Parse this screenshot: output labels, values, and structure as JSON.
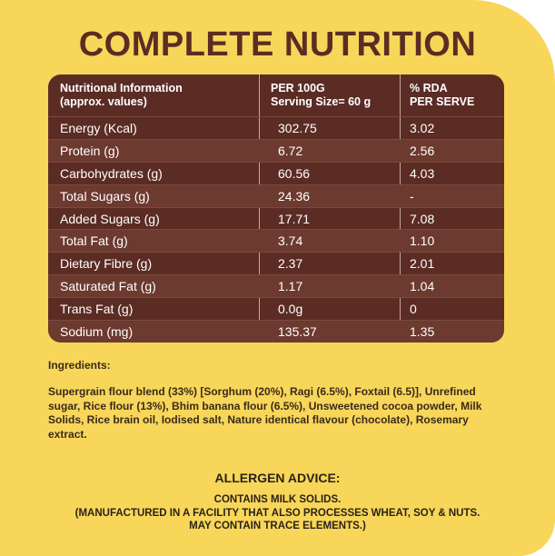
{
  "title": "COMPLETE NUTRITION",
  "table": {
    "headers": {
      "col1_line1": "Nutritional Information",
      "col1_line2": "(approx. values)",
      "col2_line1": "PER 100G",
      "col2_line2": "Serving Size= 60 g",
      "col3_line1": "% RDA",
      "col3_line2": "PER SERVE"
    },
    "rows": [
      {
        "name": "Energy (Kcal)",
        "per100": "302.75",
        "rda": "3.02"
      },
      {
        "name": "Protein (g)",
        "per100": "6.72",
        "rda": "2.56"
      },
      {
        "name": "Carbohydrates (g)",
        "per100": "60.56",
        "rda": "4.03"
      },
      {
        "name": "Total Sugars (g)",
        "per100": "24.36",
        "rda": "-"
      },
      {
        "name": "Added Sugars (g)",
        "per100": "17.71",
        "rda": "7.08"
      },
      {
        "name": "Total Fat (g)",
        "per100": "3.74",
        "rda": "1.10"
      },
      {
        "name": "Dietary Fibre (g)",
        "per100": "2.37",
        "rda": "2.01"
      },
      {
        "name": "Saturated Fat (g)",
        "per100": "1.17",
        "rda": "1.04"
      },
      {
        "name": "Trans Fat (g)",
        "per100": "0.0g",
        "rda": "0"
      },
      {
        "name": "Sodium (mg)",
        "per100": "135.37",
        "rda": "1.35"
      }
    ]
  },
  "ingredients": {
    "heading": "Ingredients:",
    "text": "Supergrain flour blend (33%) [Sorghum (20%), Ragi (6.5%), Foxtail (6.5)], Unrefined sugar, Rice flour (13%), Bhim banana flour (6.5%), Unsweetened cocoa powder, Milk Solids, Rice brain oil, Iodised salt, Nature identical flavour (chocolate), Rosemary extract."
  },
  "allergen": {
    "heading": "ALLERGEN ADVICE:",
    "line1": "CONTAINS MILK SOLIDS.",
    "line2": "(MANUFACTURED IN A FACILITY THAT ALSO PROCESSES WHEAT, SOY & NUTS.",
    "line3": "MAY CONTAIN TRACE ELEMENTS.)"
  },
  "colors": {
    "background": "#f7d65a",
    "table": "#5b2c24",
    "title": "#5a2d22"
  }
}
